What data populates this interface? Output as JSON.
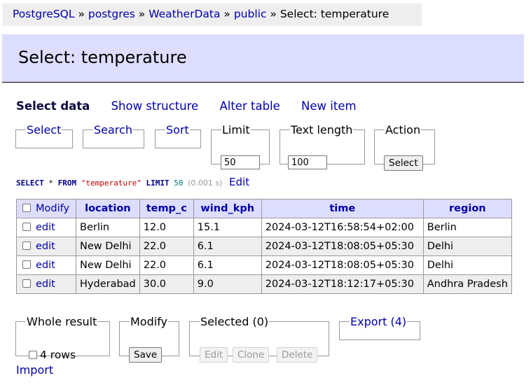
{
  "breadcrumb": {
    "items": [
      "PostgreSQL",
      "postgres",
      "WeatherData",
      "public"
    ],
    "separator": "»",
    "current": "Select: temperature"
  },
  "page_title": "Select: temperature",
  "nav_links": {
    "select_data": "Select data",
    "show_structure": "Show structure",
    "alter_table": "Alter table",
    "new_item": "New item"
  },
  "form": {
    "select_legend": "Select",
    "search_legend": "Search",
    "sort_legend": "Sort",
    "limit_legend": "Limit",
    "limit_value": "50",
    "text_length_legend": "Text length",
    "text_length_value": "100",
    "action_legend": "Action",
    "action_button": "Select"
  },
  "query": {
    "select_kw": "SELECT",
    "star": "*",
    "from_kw": "FROM",
    "table": "\"temperature\"",
    "limit_kw": "LIMIT",
    "limit_num": "50",
    "time": "(0.001 s)",
    "edit_link": "Edit"
  },
  "table": {
    "modify_header": "Modify",
    "columns": [
      "location",
      "temp_c",
      "wind_kph",
      "time",
      "region"
    ],
    "edit_label": "edit",
    "rows": [
      [
        "Berlin",
        "12.0",
        "15.1",
        "2024-03-12T16:58:54+02:00",
        "Berlin"
      ],
      [
        "New Delhi",
        "22.0",
        "6.1",
        "2024-03-12T18:08:05+05:30",
        "Delhi"
      ],
      [
        "New Delhi",
        "22.0",
        "6.1",
        "2024-03-12T18:08:05+05:30",
        "Delhi"
      ],
      [
        "Hyderabad",
        "30.0",
        "9.0",
        "2024-03-12T18:12:17+05:30",
        "Andhra Pradesh"
      ]
    ]
  },
  "bottom": {
    "whole_result_legend": "Whole result",
    "rows_label": "4 rows",
    "modify_legend": "Modify",
    "save_button": "Save",
    "selected_legend": "Selected (0)",
    "edit_button": "Edit",
    "clone_button": "Clone",
    "delete_button": "Delete",
    "export_link": "Export (4)"
  },
  "import_link": "Import",
  "colors": {
    "link": "#0000aa",
    "header_bg": "#ddddff",
    "breadcrumb_bg": "#eeeeee",
    "sql_keyword": "#000088",
    "sql_string": "#bb0000",
    "sql_number": "#007777"
  }
}
